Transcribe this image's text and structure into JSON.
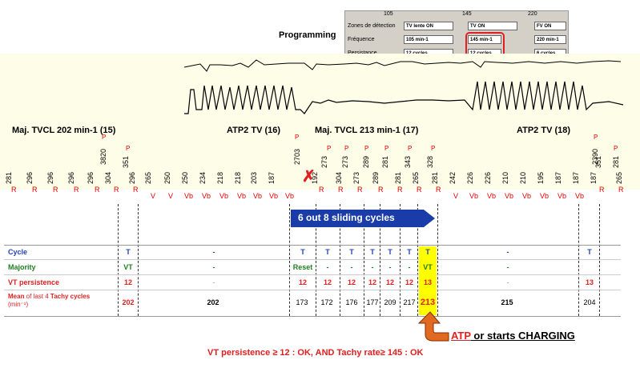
{
  "programming": {
    "title": "Programming",
    "col_headers": [
      "105",
      "145",
      "220"
    ],
    "row_labels": [
      "Zones de détection",
      "Fréquence",
      "Persistance"
    ],
    "zones": [
      "TV lente ON",
      "TV ON",
      "FV ON"
    ],
    "frequency": [
      "105 min-1",
      "145 min-1",
      "220 min-1"
    ],
    "persistence": [
      "12 cycles",
      "12 cycles",
      "6 cycles"
    ]
  },
  "annotations": {
    "maj1": "Maj. TVCL 202 min-1 (15)",
    "atp1": "ATP2 TV (16)",
    "maj2": "Maj. TVCL 213 min-1 (17)",
    "atp2": "ATP2 TV (18)"
  },
  "intervals": [
    "281",
    "296",
    "296",
    "296",
    "296",
    "304",
    "351",
    "296",
    "265",
    "250",
    "250",
    "234",
    "218",
    "218",
    "203",
    "187",
    "192",
    "273",
    "304",
    "273",
    "273",
    "289",
    "289",
    "281",
    "343",
    "265",
    "281",
    "328",
    "242",
    "226",
    "226",
    "210",
    "210",
    "195",
    "187",
    "187",
    "187",
    "351",
    "265",
    "2390",
    "281",
    "3820",
    "2703"
  ],
  "beat_labels": [
    "R",
    "R",
    "R",
    "R",
    "R",
    "R",
    "R",
    "V",
    "V",
    "Vb",
    "Vb",
    "Vb",
    "Vb",
    "Vb",
    "Vb",
    "Vb",
    "R",
    "R",
    "R",
    "R",
    "R",
    "R",
    "R",
    "R",
    "V",
    "Vb",
    "Vb",
    "Vb",
    "Vb",
    "Vb",
    "Vb",
    "Vb",
    "R",
    "R"
  ],
  "p_mark": "P",
  "cross_mark": "✗",
  "banner": "6 out 8 sliding cycles",
  "table": {
    "labels": {
      "cycle": "Cycle",
      "majority": "Majority",
      "persistence": "VT persistence",
      "mean_prefix": "Mean",
      "mean_rest": " of last 4 ",
      "mean_bold": "Tachy cycles",
      "mean_unit": "(min⁻¹)"
    },
    "cycle": [
      "T",
      "-",
      "T",
      "T",
      "T",
      "T",
      "T",
      "T",
      "T",
      "-",
      "T"
    ],
    "majority": [
      "VT",
      "-",
      "Reset",
      "-",
      "-",
      "-",
      "-",
      "-",
      "VT",
      "-",
      ""
    ],
    "persistence": [
      "12",
      "-",
      "12",
      "12",
      "12",
      "12",
      "12",
      "12",
      "13",
      "-",
      "13"
    ],
    "mean": [
      "202",
      "202",
      "173",
      "172",
      "176",
      "177",
      "209",
      "217",
      "213",
      "215",
      "204"
    ]
  },
  "atp_label": "ATP",
  "atp_rest": " or starts CHARGING",
  "bottom_note": "VT persistence ≥ 12 : OK,  AND Tachy rate≥ 145 : OK",
  "colors": {
    "red": "#e02020",
    "blue": "#2040c0",
    "green": "#208020",
    "yellow": "#ffff00",
    "banner": "#1a3ca8"
  }
}
